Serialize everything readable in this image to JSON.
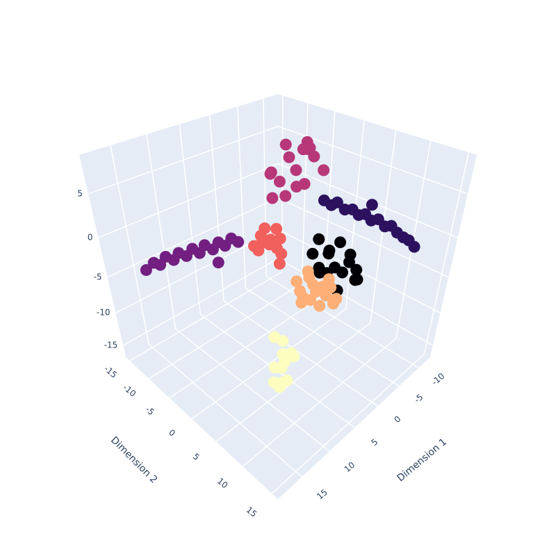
{
  "chart_data": {
    "type": "scatter3d",
    "xaxis_title": "Dimension 1",
    "yaxis_title": "Dimension 2",
    "xlim": [
      -13,
      19
    ],
    "ylim": [
      -16,
      16
    ],
    "zlim": [
      -17,
      9
    ],
    "xticks": [
      -10,
      -5,
      0,
      5,
      10,
      15
    ],
    "yticks": [
      -15,
      -10,
      -5,
      0,
      5,
      10,
      15
    ],
    "zticks": [
      -15,
      -10,
      -5,
      0,
      5
    ],
    "grid": true,
    "series": [
      {
        "color": "#000004",
        "x": [
          -1.8,
          -3.2,
          -0.5,
          -2.6,
          0.4,
          -4.1,
          -1.1,
          -2.9,
          0.9,
          -3.6,
          -1.5,
          -0.2,
          -2.2,
          -4.4,
          0.2,
          -1.9
        ],
        "y": [
          5.6,
          6.8,
          4.2,
          3.9,
          6.1,
          7.4,
          5.0,
          8.2,
          5.2,
          4.8,
          7.1,
          3.1,
          9.0,
          6.0,
          7.8,
          2.6
        ],
        "z": [
          -3.4,
          -2.8,
          -4.1,
          -2.2,
          -3.0,
          -3.9,
          -1.6,
          -4.4,
          -2.5,
          -1.2,
          -3.3,
          -2.0,
          -3.7,
          -2.6,
          -4.6,
          -1.0
        ]
      },
      {
        "color": "#2c115f",
        "x": [
          -1.8,
          -2.4,
          -2.9,
          -3.6,
          -4.1,
          -4.8,
          -5.2,
          -5.9,
          -6.4,
          -7.0,
          -7.5,
          -8.1,
          -8.6,
          -9.2,
          -9.8,
          -6.6
        ],
        "y": [
          3.2,
          3.9,
          4.4,
          5.1,
          5.9,
          6.4,
          7.1,
          7.6,
          8.3,
          9.0,
          9.6,
          10.2,
          10.9,
          11.4,
          12.0,
          7.0
        ],
        "z": [
          3.8,
          3.3,
          3.6,
          2.8,
          2.9,
          2.2,
          2.4,
          1.6,
          1.8,
          1.0,
          1.1,
          0.3,
          -0.2,
          -0.6,
          -1.4,
          3.0
        ]
      },
      {
        "color": "#721f81",
        "x": [
          6.2,
          6.9,
          7.5,
          8.3,
          8.8,
          9.6,
          10.2,
          10.9,
          11.5,
          12.3,
          12.9,
          13.6,
          14.3,
          14.9,
          15.8,
          9.0
        ],
        "y": [
          -4.0,
          -4.5,
          -5.1,
          -5.4,
          -6.0,
          -6.6,
          -7.0,
          -7.5,
          -8.1,
          -8.6,
          -9.0,
          -9.7,
          -10.1,
          -10.6,
          -11.2,
          -4.8
        ],
        "z": [
          -0.8,
          -0.3,
          -1.2,
          -0.6,
          -1.5,
          -0.9,
          -1.8,
          -1.2,
          -2.1,
          -1.6,
          -2.4,
          -2.0,
          -2.9,
          -2.6,
          -3.4,
          -2.6
        ]
      },
      {
        "color": "#b73779",
        "x": [
          -1.8,
          -3.5,
          -0.2,
          -2.6,
          0.9,
          -4.3,
          -1.0,
          -2.9,
          -0.6,
          -3.8,
          1.6,
          -2.0,
          -4.9,
          -1.4,
          0.3,
          -3.1
        ],
        "y": [
          -1.6,
          -0.2,
          -2.9,
          -3.6,
          -0.8,
          -2.1,
          0.6,
          -4.5,
          -5.0,
          1.2,
          -2.4,
          0.4,
          -3.3,
          -1.1,
          -3.9,
          -0.9
        ],
        "z": [
          5.8,
          7.2,
          4.6,
          6.5,
          3.9,
          8.1,
          5.1,
          7.6,
          4.8,
          6.0,
          3.4,
          8.6,
          6.9,
          4.2,
          5.5,
          7.9
        ]
      },
      {
        "color": "#f1605d",
        "x": [
          3.0,
          2.1,
          4.2,
          3.6,
          1.5,
          4.9,
          2.7,
          3.9,
          1.9,
          4.4,
          2.4,
          3.3
        ],
        "y": [
          -1.6,
          -0.5,
          -2.4,
          0.4,
          -2.9,
          -1.0,
          -3.5,
          1.2,
          -1.4,
          -3.0,
          0.0,
          -2.1
        ],
        "z": [
          -1.4,
          -0.6,
          -2.0,
          -0.9,
          -1.8,
          -0.3,
          -1.1,
          -2.4,
          0.2,
          -1.6,
          -2.2,
          0.5
        ]
      },
      {
        "color": "#feaf77",
        "x": [
          4.6,
          3.4,
          5.8,
          4.1,
          6.5,
          3.0,
          5.2,
          4.8,
          6.1,
          3.7,
          5.5,
          2.8,
          4.3,
          6.9,
          5.0,
          3.9
        ],
        "y": [
          8.0,
          9.2,
          7.0,
          6.4,
          8.8,
          7.6,
          10.0,
          5.6,
          6.2,
          10.4,
          9.4,
          8.4,
          7.2,
          7.8,
          11.0,
          6.0
        ],
        "z": [
          -2.7,
          -2.2,
          -3.3,
          -1.9,
          -2.5,
          -3.0,
          -2.0,
          -3.6,
          -1.6,
          -2.9,
          -3.4,
          -1.8,
          -2.3,
          -3.1,
          -2.6,
          -1.4
        ]
      },
      {
        "color": "#fcfdbf",
        "x": [
          10.2,
          9.6,
          11.0,
          10.6,
          9.1,
          11.5,
          10.0,
          10.9,
          9.4,
          11.3,
          10.4,
          9.8
        ],
        "y": [
          8.0,
          7.4,
          8.6,
          7.0,
          8.8,
          7.8,
          9.2,
          8.2,
          7.6,
          9.0,
          6.8,
          8.4
        ],
        "z": [
          -7.9,
          -6.8,
          -9.0,
          -10.1,
          -8.4,
          -11.2,
          -7.2,
          -12.0,
          -9.6,
          -10.6,
          -6.2,
          -11.6
        ]
      }
    ]
  }
}
